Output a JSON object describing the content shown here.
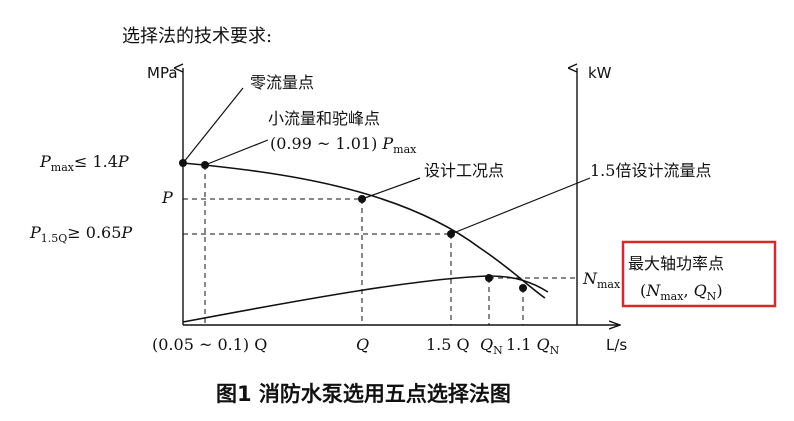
{
  "heading": "选择法的技术要求:",
  "left_axis_unit": "MPa",
  "right_axis_unit": "kW",
  "x_axis_unit": "L/s",
  "caption": "图1 消防水泵选用五点选择法图",
  "points": {
    "zero_flow": "零流量点",
    "small_flow_line1": "小流量和驼峰点",
    "small_flow_line2_pre": "(0.99 ~ 1.01) ",
    "design": "设计工况点",
    "design_150": "1.5倍设计流量点",
    "max_power_line1": "最大轴功率点"
  },
  "y_labels": {
    "pmax_p": "P",
    "pmax_sub": "max",
    "pmax_rest": "≤ 1.4",
    "pmax_tail": "P",
    "p": "P",
    "p15_p": "P",
    "p15_sub": "1.5Q",
    "p15_rest": "≥ 0.65",
    "p15_tail": "P",
    "nmax_n": "N",
    "nmax_sub": "max"
  },
  "x_labels": {
    "q_small": "(0.05 ~ 0.1) Q",
    "q": "Q",
    "q15": "1.5 Q",
    "qn": "Q",
    "qn_sub": "N",
    "q11_pre": "1.1 ",
    "q11": "Q",
    "q11_sub": "N"
  },
  "max_power_label": {
    "open": "(",
    "n": "N",
    "n_sub": "max",
    "comma": ", ",
    "q": "Q",
    "q_sub": "N",
    "close": ")"
  },
  "highlight_color": "#d42a2a"
}
